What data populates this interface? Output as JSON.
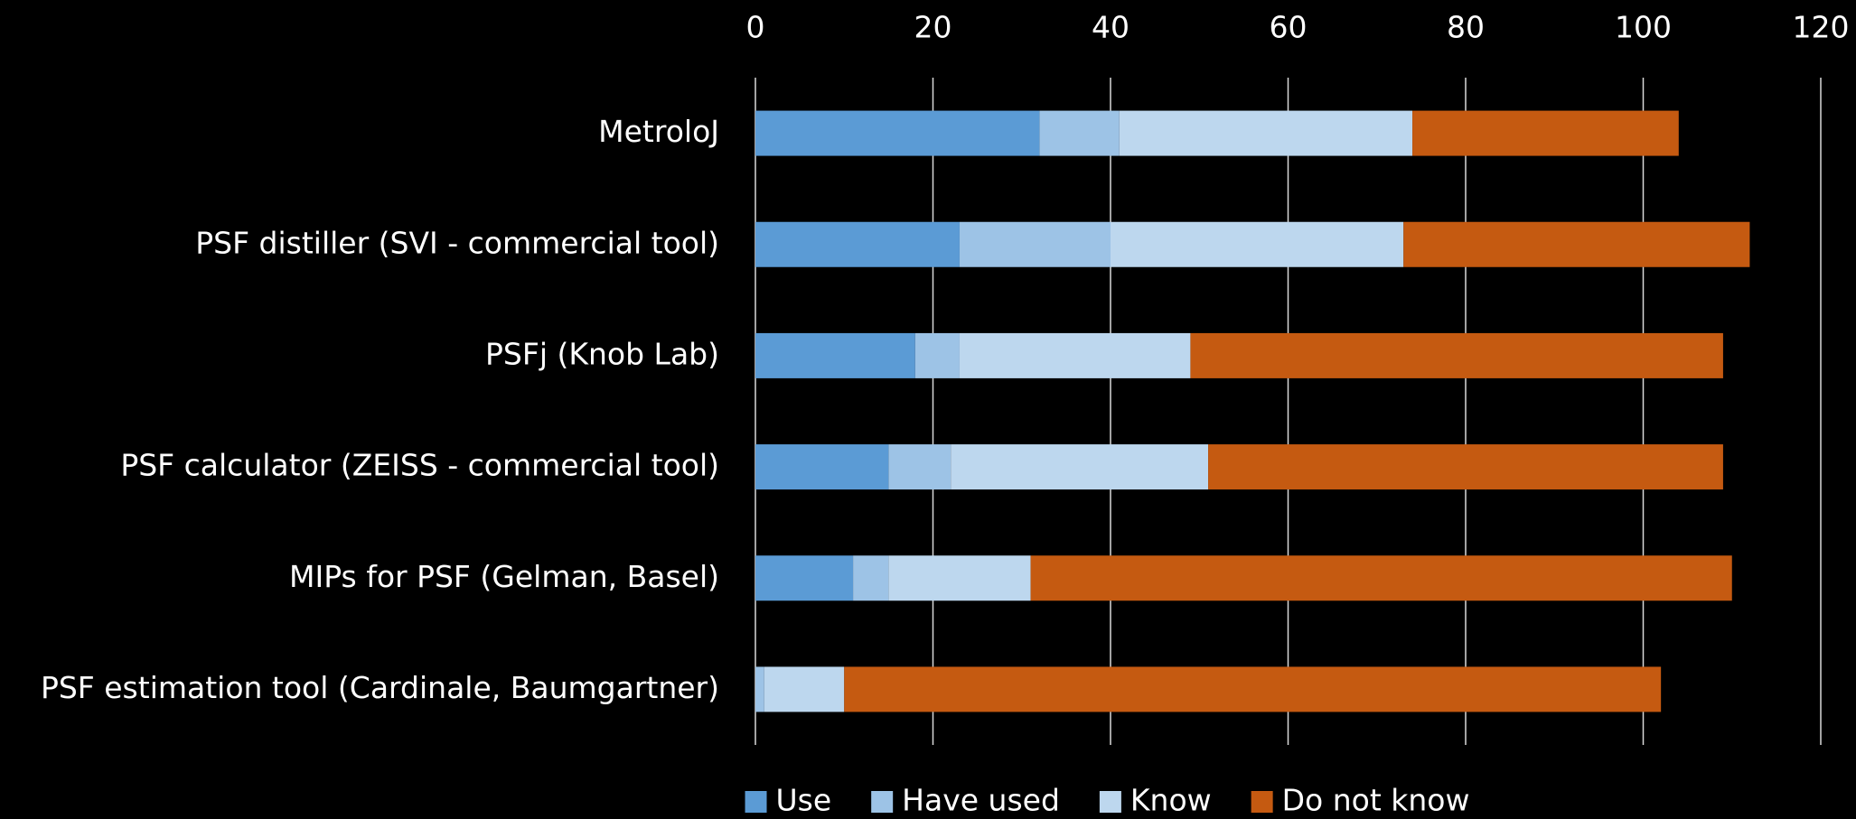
{
  "chart_data": {
    "type": "stacked-bar-horizontal",
    "categories": [
      "MetroloJ",
      "PSF distiller (SVI - commercial tool)",
      "PSFj (Knob Lab)",
      "PSF calculator (ZEISS - commercial tool)",
      "MIPs for PSF (Gelman, Basel)",
      "PSF estimation tool (Cardinale, Baumgartner)"
    ],
    "series": [
      {
        "name": "Use",
        "color": "#5b9bd5",
        "values": [
          32,
          23,
          18,
          15,
          11,
          0
        ]
      },
      {
        "name": "Have used",
        "color": "#9dc3e6",
        "values": [
          9,
          17,
          5,
          7,
          4,
          1
        ]
      },
      {
        "name": "Know",
        "color": "#bdd7ee",
        "values": [
          33,
          33,
          26,
          29,
          16,
          9
        ]
      },
      {
        "name": "Do not know",
        "color": "#c55a11",
        "values": [
          30,
          39,
          60,
          58,
          79,
          92
        ]
      }
    ],
    "xlim": [
      0,
      120
    ],
    "xticks": [
      0,
      20,
      40,
      60,
      80,
      100,
      120
    ],
    "grid": true,
    "legend": "bottom"
  }
}
